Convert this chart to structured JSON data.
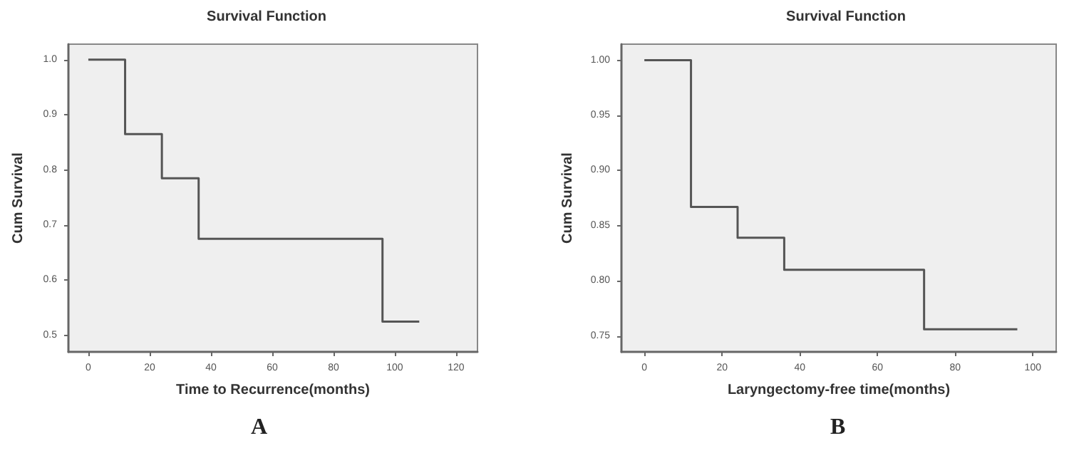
{
  "chart_data": [
    {
      "type": "step",
      "title": "Survival Function",
      "xlabel": "Time to Recurrence(months)",
      "ylabel": "Cum Survival",
      "annotations": [
        "A"
      ],
      "series": [
        {
          "color": "#555555",
          "x": [
            0,
            12,
            24,
            36,
            96,
            108
          ],
          "values": [
            1.0,
            0.865,
            0.785,
            0.675,
            0.525,
            0.525
          ]
        }
      ],
      "xlim": [
        -6.5,
        127
      ],
      "xticks": [
        0,
        20,
        40,
        60,
        80,
        100,
        120
      ],
      "ylim": [
        0.47,
        1.028
      ],
      "yticks": [
        {
          "value": 0.5,
          "label": "0.5"
        },
        {
          "value": 0.6,
          "label": "0.6"
        },
        {
          "value": 0.7,
          "label": "0.7"
        },
        {
          "value": 0.8,
          "label": "0.8"
        },
        {
          "value": 0.9,
          "label": "0.9"
        },
        {
          "value": 1.0,
          "label": "1.0"
        }
      ],
      "grid": false,
      "marker": "none",
      "line_style": "solid"
    },
    {
      "type": "step",
      "title": "Survival Function",
      "xlabel": "Laryngectomy-free time(months)",
      "ylabel": "Cum Survival",
      "annotations": [
        "B"
      ],
      "series": [
        {
          "color": "#555555",
          "x": [
            0,
            12,
            24,
            36,
            72,
            96
          ],
          "values": [
            1.0,
            0.867,
            0.839,
            0.81,
            0.756,
            0.756
          ]
        }
      ],
      "xlim": [
        -5.9,
        106
      ],
      "xticks": [
        0,
        20,
        40,
        60,
        80,
        100
      ],
      "ylim": [
        0.7355,
        1.0146
      ],
      "yticks": [
        {
          "value": 0.75,
          "label": "0.75"
        },
        {
          "value": 0.8,
          "label": "0.80"
        },
        {
          "value": 0.85,
          "label": "0.85"
        },
        {
          "value": 0.9,
          "label": "0.90"
        },
        {
          "value": 0.95,
          "label": "0.95"
        },
        {
          "value": 1.0,
          "label": "1.00"
        }
      ],
      "grid": false,
      "marker": "none",
      "line_style": "solid"
    }
  ]
}
